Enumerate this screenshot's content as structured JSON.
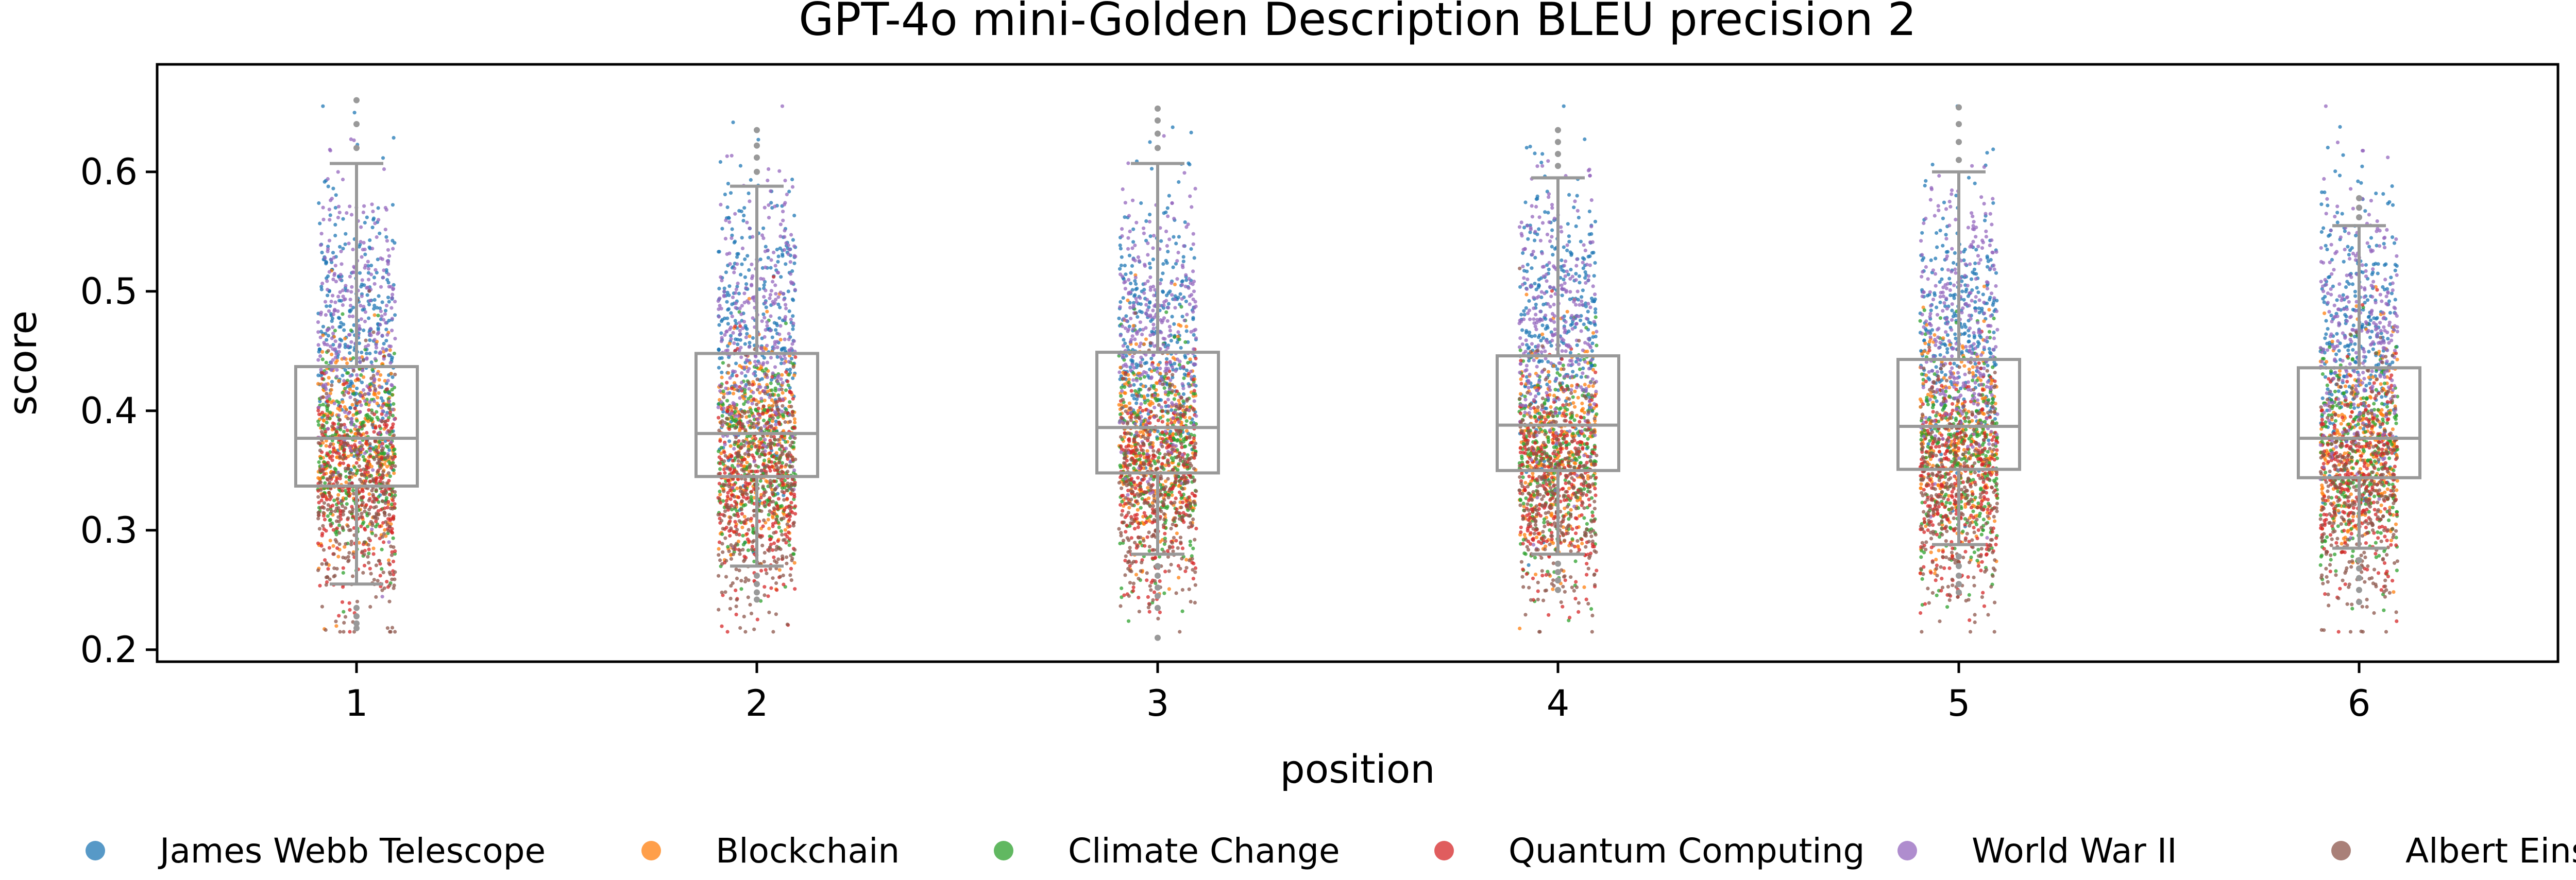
{
  "chart_data": {
    "type": "box-strip",
    "title": "GPT-4o mini-Golden Description BLEU precision 2",
    "xlabel": "position",
    "ylabel": "score",
    "ylim": [
      0.19,
      0.69
    ],
    "yticks": [
      "0.2",
      "0.3",
      "0.4",
      "0.5",
      "0.6"
    ],
    "grid": false,
    "legend_position": "bottom",
    "categories": [
      "1",
      "2",
      "3",
      "4",
      "5",
      "6"
    ],
    "boxes": [
      {
        "category": "1",
        "whisker_low": 0.255,
        "q1": 0.337,
        "median": 0.377,
        "q3": 0.437,
        "whisker_high": 0.607,
        "outliers": [
          0.235,
          0.228,
          0.222,
          0.218,
          0.62,
          0.64,
          0.66
        ]
      },
      {
        "category": "2",
        "whisker_low": 0.27,
        "q1": 0.345,
        "median": 0.381,
        "q3": 0.448,
        "whisker_high": 0.588,
        "outliers": [
          0.262,
          0.255,
          0.248,
          0.242,
          0.6,
          0.612,
          0.622,
          0.635
        ]
      },
      {
        "category": "3",
        "whisker_low": 0.28,
        "q1": 0.348,
        "median": 0.386,
        "q3": 0.449,
        "whisker_high": 0.607,
        "outliers": [
          0.27,
          0.262,
          0.252,
          0.245,
          0.235,
          0.21,
          0.62,
          0.632,
          0.643,
          0.653
        ]
      },
      {
        "category": "4",
        "whisker_low": 0.28,
        "q1": 0.35,
        "median": 0.388,
        "q3": 0.446,
        "whisker_high": 0.595,
        "outliers": [
          0.272,
          0.265,
          0.258,
          0.25,
          0.605,
          0.615,
          0.625,
          0.635
        ]
      },
      {
        "category": "5",
        "whisker_low": 0.288,
        "q1": 0.351,
        "median": 0.387,
        "q3": 0.443,
        "whisker_high": 0.6,
        "outliers": [
          0.278,
          0.27,
          0.262,
          0.255,
          0.248,
          0.61,
          0.625,
          0.64,
          0.654
        ]
      },
      {
        "category": "6",
        "whisker_low": 0.285,
        "q1": 0.344,
        "median": 0.377,
        "q3": 0.436,
        "whisker_high": 0.555,
        "outliers": [
          0.275,
          0.268,
          0.26,
          0.25,
          0.24,
          0.562,
          0.57,
          0.578
        ]
      }
    ],
    "series": [
      {
        "name": "James Webb Telescope",
        "color": "#1f77b4",
        "center": 0.47,
        "spread": 0.06
      },
      {
        "name": "Blockchain",
        "color": "#ff7f0e",
        "center": 0.37,
        "spread": 0.045
      },
      {
        "name": "Climate Change",
        "color": "#2ca02c",
        "center": 0.36,
        "spread": 0.045
      },
      {
        "name": "Quantum Computing",
        "color": "#d62728",
        "center": 0.34,
        "spread": 0.045
      },
      {
        "name": "World War II",
        "color": "#9467bd",
        "center": 0.47,
        "spread": 0.06
      },
      {
        "name": "Albert Einstein",
        "color": "#8c564b",
        "center": 0.33,
        "spread": 0.05
      }
    ],
    "points_per_series_per_position": 300,
    "box_color": "#999999"
  }
}
